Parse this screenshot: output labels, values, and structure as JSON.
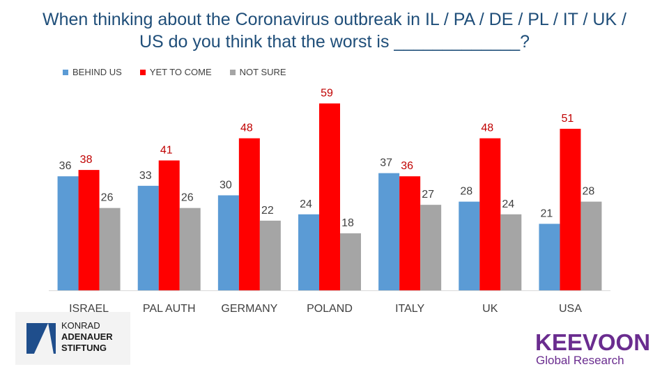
{
  "title_line1": "When thinking about the Coronavirus outbreak in IL / PA / DE / PL / IT / UK /",
  "title_line2": "US do you think that the worst is _____________?",
  "chart_data": {
    "type": "bar",
    "categories": [
      "ISRAEL",
      "PAL AUTH",
      "GERMANY",
      "POLAND",
      "ITALY",
      "UK",
      "USA"
    ],
    "series": [
      {
        "name": "BEHIND US",
        "color": "#5b9bd5",
        "values": [
          36,
          33,
          30,
          24,
          37,
          28,
          21
        ]
      },
      {
        "name": "YET TO COME",
        "color": "#ff0000",
        "values": [
          38,
          41,
          48,
          59,
          36,
          48,
          51
        ]
      },
      {
        "name": "NOT SURE",
        "color": "#a5a5a5",
        "values": [
          26,
          26,
          22,
          18,
          27,
          24,
          28
        ]
      }
    ],
    "ylim": [
      0,
      65
    ],
    "title": "When thinking about the Coronavirus outbreak in IL / PA / DE / PL / IT / UK / US do you think that the worst is _____________?",
    "xlabel": "",
    "ylabel": "",
    "legend": "top-left",
    "grid": false
  },
  "logos": {
    "kas": {
      "line1": "KONRAD",
      "line2": "ADENAUER",
      "line3": "STIFTUNG"
    },
    "keevoon": {
      "name": "KEEVOON",
      "sub": "Global Research"
    }
  }
}
